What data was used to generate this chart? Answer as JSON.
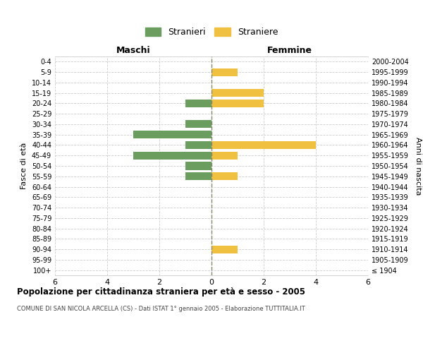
{
  "age_groups": [
    "100+",
    "95-99",
    "90-94",
    "85-89",
    "80-84",
    "75-79",
    "70-74",
    "65-69",
    "60-64",
    "55-59",
    "50-54",
    "45-49",
    "40-44",
    "35-39",
    "30-34",
    "25-29",
    "20-24",
    "15-19",
    "10-14",
    "5-9",
    "0-4"
  ],
  "birth_years": [
    "≤ 1904",
    "1905-1909",
    "1910-1914",
    "1915-1919",
    "1920-1924",
    "1925-1929",
    "1930-1934",
    "1935-1939",
    "1940-1944",
    "1945-1949",
    "1950-1954",
    "1955-1959",
    "1960-1964",
    "1965-1969",
    "1970-1974",
    "1975-1979",
    "1980-1984",
    "1985-1989",
    "1990-1994",
    "1995-1999",
    "2000-2004"
  ],
  "males": [
    0,
    0,
    0,
    0,
    0,
    0,
    0,
    0,
    0,
    -1,
    -1,
    -3,
    -1,
    -3,
    -1,
    0,
    -1,
    0,
    0,
    0,
    0
  ],
  "females": [
    0,
    0,
    1,
    0,
    0,
    0,
    0,
    0,
    0,
    1,
    0,
    1,
    4,
    0,
    0,
    0,
    2,
    2,
    0,
    1,
    0
  ],
  "male_color": "#6b9e5e",
  "female_color": "#f0c040",
  "background_color": "#ffffff",
  "grid_color": "#cccccc",
  "title": "Popolazione per cittadinanza straniera per età e sesso - 2005",
  "subtitle": "COMUNE DI SAN NICOLA ARCELLA (CS) - Dati ISTAT 1° gennaio 2005 - Elaborazione TUTTITALIA.IT",
  "xlabel_left": "Maschi",
  "xlabel_right": "Femmine",
  "ylabel_left": "Fasce di età",
  "ylabel_right": "Anni di nascita",
  "legend_male": "Stranieri",
  "legend_female": "Straniere",
  "xlim": 6,
  "bar_height": 0.75
}
